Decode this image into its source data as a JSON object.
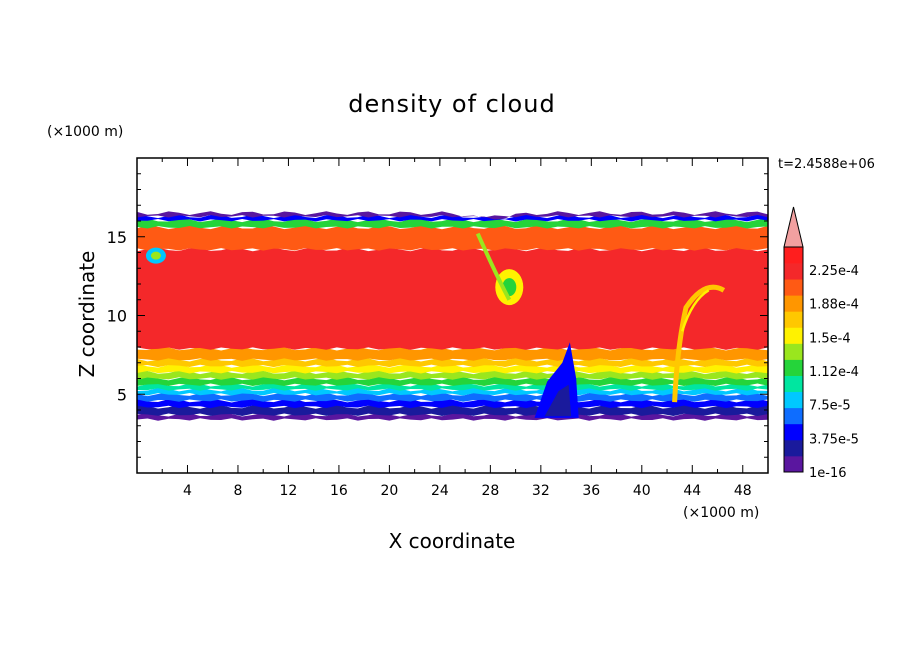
{
  "chart_data": {
    "type": "heatmap",
    "title": "density of cloud",
    "xlabel": "X coordinate",
    "ylabel": "Z coordinate",
    "x_unit": "(×1000 m)",
    "y_unit": "(×1000 m)",
    "time_label": "t=2.4588e+06",
    "xlim": [
      0,
      50
    ],
    "ylim": [
      0,
      20
    ],
    "xticks": [
      4,
      8,
      12,
      16,
      20,
      24,
      28,
      32,
      36,
      40,
      44,
      48
    ],
    "yticks": [
      5,
      10,
      15
    ],
    "colorbar": {
      "labels": [
        "2.25e-4",
        "1.88e-4",
        "1.5e-4",
        "1.12e-4",
        "7.5e-5",
        "3.75e-5",
        "1e-16"
      ],
      "colors": [
        "#5a169f",
        "#1a1a9c",
        "#0000ff",
        "#0e6dff",
        "#00c8ff",
        "#00e6a0",
        "#25d43a",
        "#9ae61e",
        "#fff200",
        "#ffc800",
        "#ff9600",
        "#ff5a14",
        "#f4282a",
        "#ff1e1e"
      ],
      "extend_color": "#f2a0a0"
    },
    "cloud_base_km": 3.4,
    "cloud_top_km": 16.5,
    "core_range_km": [
      7.5,
      14.2
    ]
  }
}
